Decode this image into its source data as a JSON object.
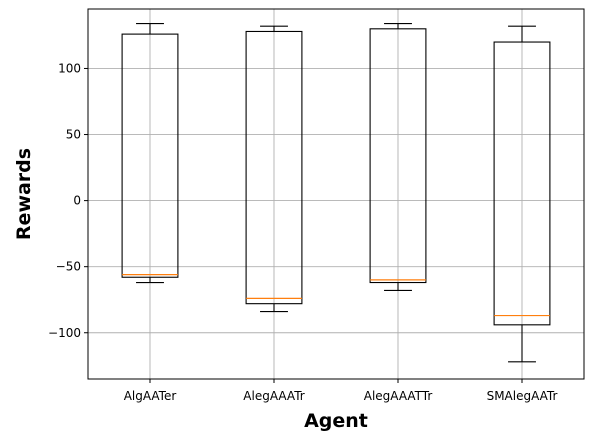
{
  "chart_data": {
    "type": "box",
    "title": "",
    "xlabel": "Agent",
    "ylabel": "Rewards",
    "categories": [
      "AlgAATer",
      "AlegAAATr",
      "AlegAAATTr",
      "SMAlegAATr"
    ],
    "boxes": [
      {
        "whislo": -62,
        "q1": -58,
        "med": -56,
        "q3": 126,
        "whishi": 134
      },
      {
        "whislo": -84,
        "q1": -78,
        "med": -74,
        "q3": 128,
        "whishi": 132
      },
      {
        "whislo": -68,
        "q1": -62,
        "med": -60,
        "q3": 130,
        "whishi": 134
      },
      {
        "whislo": -122,
        "q1": -94,
        "med": -87,
        "q3": 120,
        "whishi": 132
      }
    ],
    "yticks": [
      -100,
      -50,
      0,
      50,
      100
    ],
    "ytick_labels": [
      "−100",
      "−50",
      "0",
      "50",
      "100"
    ],
    "ylim": [
      -135,
      145
    ],
    "grid": true,
    "colors": {
      "box": "#000000",
      "median": "#ff7f0e",
      "grid": "#b0b0b0"
    }
  }
}
